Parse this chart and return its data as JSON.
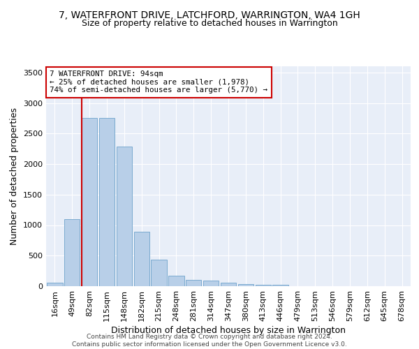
{
  "title": "7, WATERFRONT DRIVE, LATCHFORD, WARRINGTON, WA4 1GH",
  "subtitle": "Size of property relative to detached houses in Warrington",
  "xlabel": "Distribution of detached houses by size in Warrington",
  "ylabel": "Number of detached properties",
  "categories": [
    "16sqm",
    "49sqm",
    "82sqm",
    "115sqm",
    "148sqm",
    "182sqm",
    "215sqm",
    "248sqm",
    "281sqm",
    "314sqm",
    "347sqm",
    "380sqm",
    "413sqm",
    "446sqm",
    "479sqm",
    "513sqm",
    "546sqm",
    "579sqm",
    "612sqm",
    "645sqm",
    "678sqm"
  ],
  "values": [
    55,
    1100,
    2760,
    2750,
    2290,
    890,
    430,
    170,
    100,
    90,
    55,
    30,
    25,
    20,
    0,
    0,
    0,
    0,
    0,
    0,
    0
  ],
  "bar_color": "#b8cfe8",
  "bar_edge_color": "#7aaad0",
  "vline_color": "#cc0000",
  "annotation_line1": "7 WATERFRONT DRIVE: 94sqm",
  "annotation_line2": "← 25% of detached houses are smaller (1,978)",
  "annotation_line3": "74% of semi-detached houses are larger (5,770) →",
  "annotation_box_color": "#ffffff",
  "annotation_box_edge": "#cc0000",
  "ylim": [
    0,
    3600
  ],
  "yticks": [
    0,
    500,
    1000,
    1500,
    2000,
    2500,
    3000,
    3500
  ],
  "background_color": "#e8eef8",
  "grid_color": "#ffffff",
  "title_fontsize": 10,
  "subtitle_fontsize": 9,
  "ylabel_fontsize": 9,
  "xlabel_fontsize": 9,
  "tick_fontsize": 8,
  "footer_text": "Contains HM Land Registry data © Crown copyright and database right 2024.\nContains public sector information licensed under the Open Government Licence v3.0."
}
